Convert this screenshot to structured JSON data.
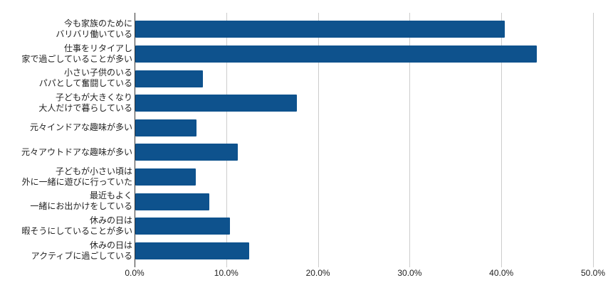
{
  "chart_data": {
    "type": "bar",
    "orientation": "horizontal",
    "title": "",
    "xlabel": "",
    "ylabel": "",
    "xlim": [
      0,
      50
    ],
    "x_tick_labels": [
      "0.0%",
      "10.0%",
      "20.0%",
      "30.0%",
      "40.0%",
      "50.0%"
    ],
    "grid": "vertical-only",
    "legend": "none",
    "categories": [
      "今も家族のために\nバリバリ働いている",
      "仕事をリタイアし\n家で過ごしていることが多い",
      "小さい子供のいる\nパパとして奮闘している",
      "子どもが大きくなり\n大人だけで暮らしている",
      "元々インドアな趣味が多い",
      "元々アウトドアな趣味が多い",
      "子どもが小さい頃は\n外に一緒に遊びに行っていた",
      "最近もよく\n一緒にお出かけをしている",
      "休みの日は\n暇そうにしていることが多い",
      "休みの日は\nアクティブに過ごしている"
    ],
    "values": [
      40.3,
      43.8,
      7.4,
      17.6,
      6.7,
      11.2,
      6.6,
      8.1,
      10.3,
      12.4
    ],
    "value_unit": "%",
    "colors": {
      "bar": "#0e528d",
      "gridline": "#cccccc",
      "axis_line": "#333333",
      "text": "#222222",
      "background": "#ffffff"
    }
  }
}
